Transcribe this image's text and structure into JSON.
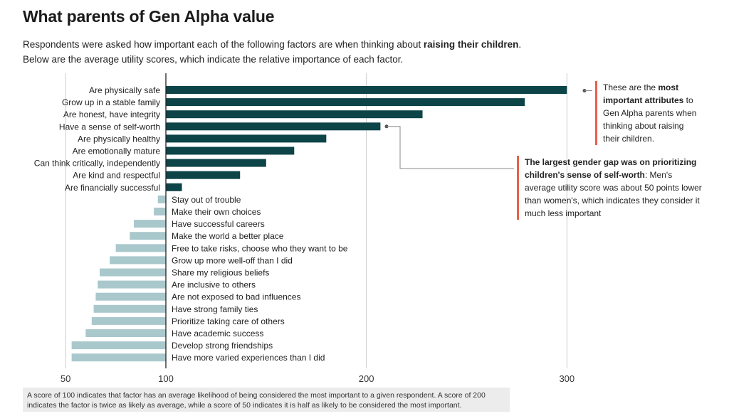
{
  "header": {
    "title": "What parents of Gen Alpha value",
    "subtitle_line1_pre": "Respondents were asked how important each of the following factors are when thinking about ",
    "subtitle_line1_bold": "raising their children",
    "subtitle_line1_post": ".",
    "subtitle_line2": "Below are the average utility scores, which indicate the relative importance of each factor."
  },
  "annotations": {
    "top": {
      "pre": "These are the ",
      "bold": "most important attributes",
      "post": " to Gen Alpha parents when thinking about raising their children."
    },
    "gap": {
      "bold": "The largest gender gap was on prioritizing children's sense of self-worth",
      "post": ": Men's average utility score was about 50 points lower than women's, which indicates they consider it much less important"
    }
  },
  "footnote": "A score of 100 indicates that factor has an average likelihood of being considered the most important to a given respondent. A score of 200 indicates the factor is twice as likely as average, while a score of 50 indicates it is half as likely to be considered the most important.",
  "colors": {
    "above": "#0d4448",
    "below": "#a9c8cc",
    "accent": "#e8604c",
    "grid": "#cccccc",
    "baseline": "#222222"
  },
  "chart_data": {
    "type": "bar",
    "orientation": "horizontal",
    "baseline": 100,
    "xlim": [
      37,
      310
    ],
    "xticks": [
      50,
      100,
      200,
      300
    ],
    "categories": [
      "Are physically safe",
      "Grow up in a stable family",
      "Are honest, have integrity",
      "Have a sense of self-worth",
      "Are physically healthy",
      "Are emotionally mature",
      "Can think critically, independently",
      "Are kind and respectful",
      "Are financially successful",
      "Stay out of trouble",
      "Make their own choices",
      "Have successful careers",
      "Make the world a better place",
      "Free to take risks, choose who they want to be",
      "Grow up more well-off than I did",
      "Share my religious beliefs",
      "Are inclusive to others",
      "Are not exposed to bad influences",
      "Have strong family ties",
      "Prioritize taking care of others",
      "Have academic success",
      "Develop strong friendships",
      "Have more varied experiences than I did"
    ],
    "values": [
      300,
      279,
      228,
      207,
      180,
      164,
      150,
      137,
      108,
      96,
      94,
      84,
      82,
      75,
      72,
      67,
      66,
      65,
      64,
      63,
      60,
      53,
      53
    ]
  }
}
